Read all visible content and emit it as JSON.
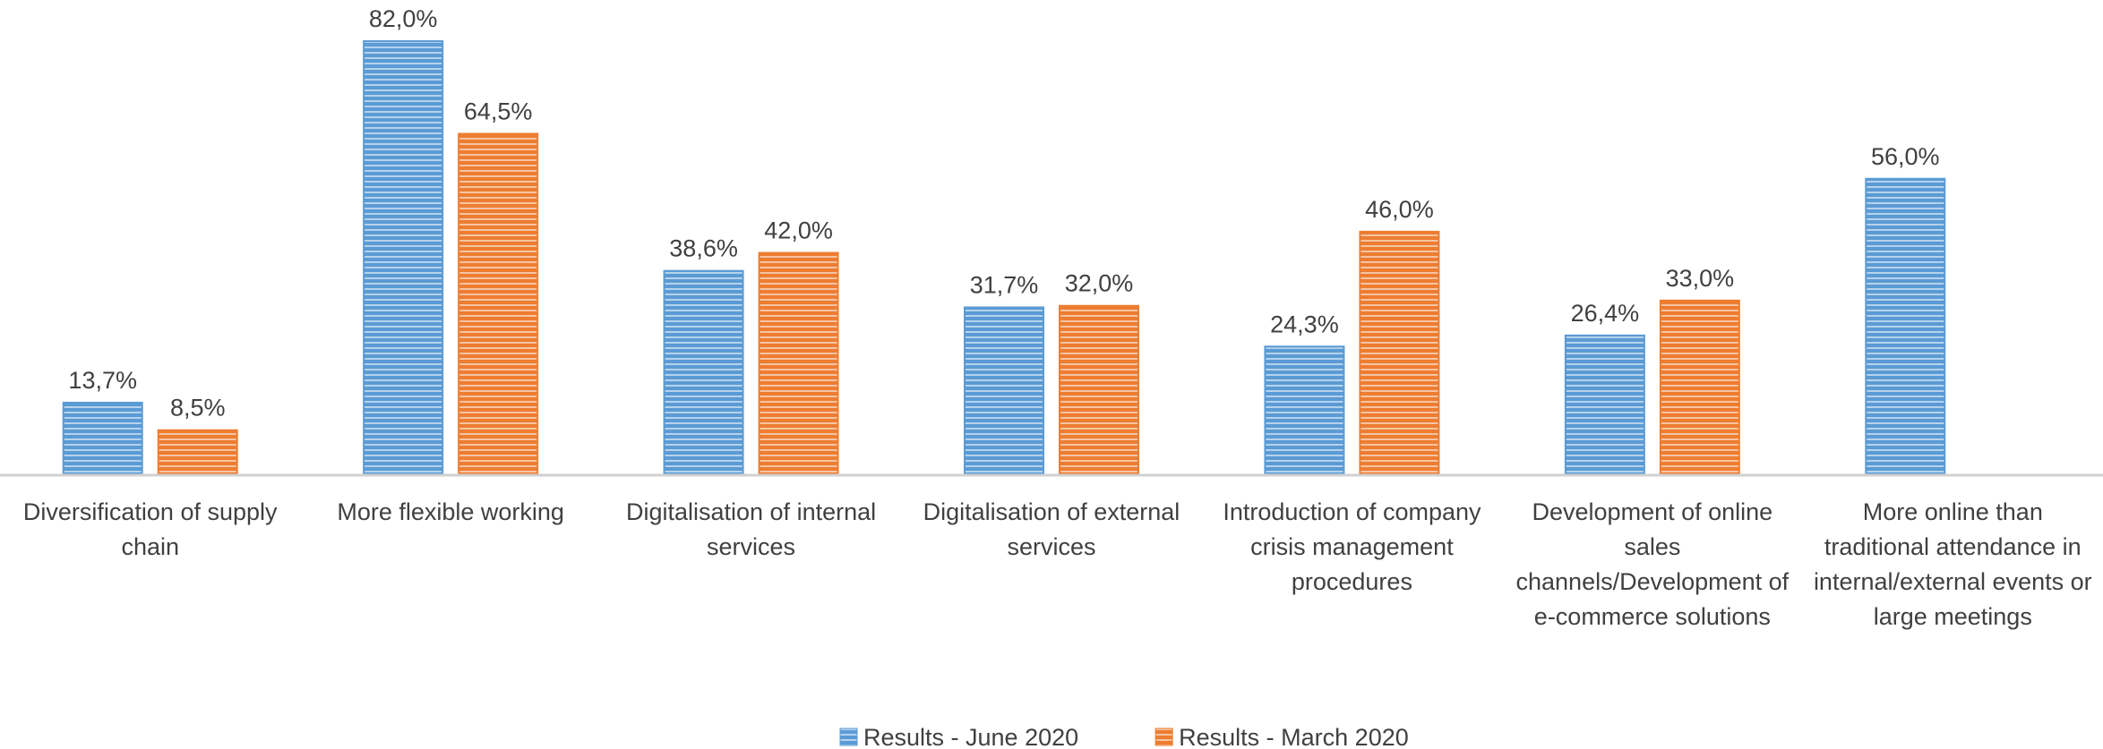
{
  "chart_data": {
    "type": "bar",
    "categories": [
      "Diversification of supply chain",
      "More flexible working",
      "Digitalisation of internal services",
      "Digitalisation of external services",
      "Introduction of company crisis management procedures",
      "Development of online sales channels/Development of e-commerce solutions",
      "More online than traditional attendance in internal/external events or large meetings"
    ],
    "series": [
      {
        "name": "Results - June 2020",
        "color": "#5b9bd5",
        "values": [
          13.7,
          82.0,
          38.6,
          31.7,
          24.3,
          26.4,
          56.0
        ],
        "value_labels": [
          "13,7%",
          "82,0%",
          "38,6%",
          "31,7%",
          "24,3%",
          "26,4%",
          "56,0%"
        ]
      },
      {
        "name": "Results - March 2020",
        "color": "#ed7d31",
        "values": [
          8.5,
          64.5,
          42.0,
          32.0,
          46.0,
          33.0,
          null
        ],
        "value_labels": [
          "8,5%",
          "64,5%",
          "42,0%",
          "32,0%",
          "46,0%",
          "33,0%",
          null
        ]
      }
    ],
    "legend": "bottom"
  }
}
